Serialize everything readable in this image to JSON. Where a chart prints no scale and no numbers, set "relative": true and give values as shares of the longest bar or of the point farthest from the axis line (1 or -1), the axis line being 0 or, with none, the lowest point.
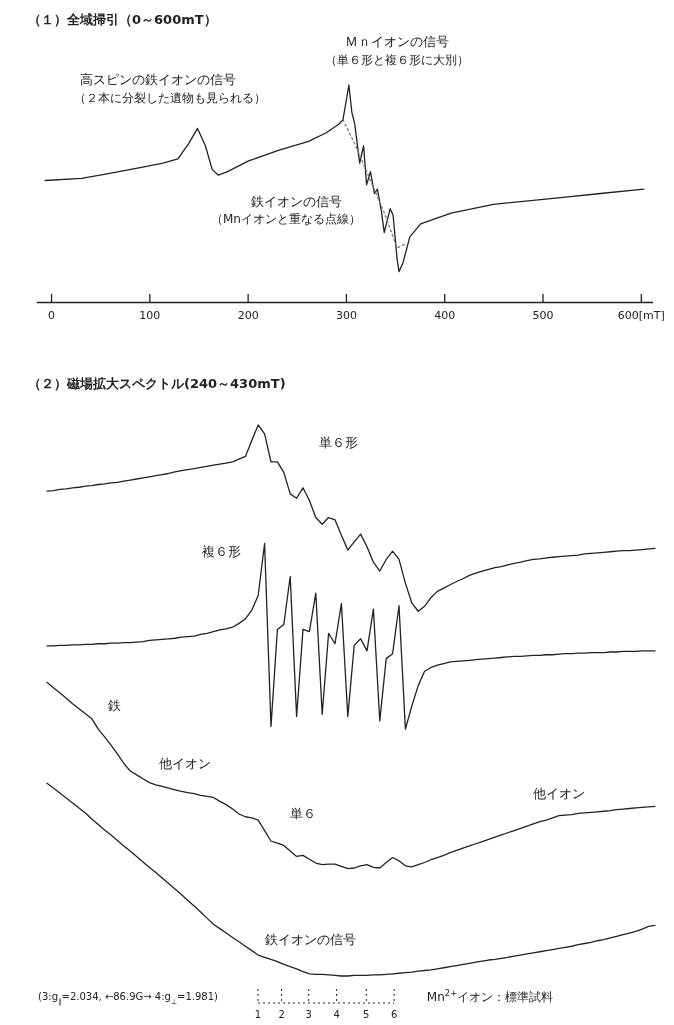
{
  "chart_data": [
    {
      "type": "line",
      "title": "（１）全域掃引（0～600mT）",
      "relative": true,
      "xlim": [
        -15,
        612
      ],
      "xticks": [
        0,
        100,
        200,
        300,
        400,
        500,
        {
          "value": 600,
          "label": "600[mT]"
        }
      ],
      "annotations": [
        "高スピンの鉄イオンの信号",
        "（２本に分裂した遺物も見られる）",
        "Ｍｎイオンの信号",
        "（単６形と複６形に大別）",
        "鉄イオンの信号",
        "（Mnイオンと重なる点線）"
      ],
      "series": [
        {
          "color": "#222222",
          "x": [
            -6,
            31,
            57,
            92,
            114,
            129,
            140,
            149,
            157,
            164,
            170,
            179,
            201,
            232,
            262,
            280,
            293,
            297,
            303,
            306,
            309,
            314,
            318,
            321,
            325,
            329,
            332,
            336,
            339,
            345,
            348,
            352,
            354,
            358,
            365,
            376,
            407,
            450,
            516,
            559,
            603
          ],
          "values": [
            0.56,
            0.57,
            0.59,
            0.62,
            0.64,
            0.66,
            0.73,
            0.8,
            0.72,
            0.61,
            0.585,
            0.6,
            0.65,
            0.7,
            0.74,
            0.78,
            0.82,
            0.84,
            1.0,
            0.875,
            0.82,
            0.64,
            0.72,
            0.54,
            0.6,
            0.5,
            0.52,
            0.42,
            0.32,
            0.43,
            0.4,
            0.2,
            0.14,
            0.18,
            0.3,
            0.36,
            0.41,
            0.45,
            0.48,
            0.5,
            0.52
          ]
        },
        {
          "color": "#777777",
          "line_style": "dotted",
          "x": [
            297,
            310,
            325,
            340,
            352,
            362
          ],
          "values": [
            0.84,
            0.72,
            0.56,
            0.4,
            0.25,
            0.27
          ]
        }
      ]
    },
    {
      "type": "line",
      "title": "（２）磁場拡大スペクトル(240～430mT)",
      "relative": true,
      "categories": [
        null,
        null,
        null,
        null,
        null,
        null,
        null,
        null,
        null,
        null,
        null,
        null,
        null,
        null,
        null,
        null,
        null,
        null,
        null,
        null,
        null,
        null,
        null,
        null,
        null,
        null,
        null,
        null,
        null,
        null,
        null,
        null,
        null,
        null,
        null,
        null,
        null,
        null,
        null,
        null,
        null,
        null,
        null,
        null,
        null,
        null,
        null,
        null,
        null,
        null,
        null,
        null,
        null,
        null,
        null,
        null,
        null,
        null,
        null,
        null,
        null,
        null,
        null,
        null,
        null,
        null,
        null,
        null,
        null,
        null,
        null,
        null,
        null,
        null,
        null,
        null,
        null,
        null,
        null,
        null,
        null,
        null,
        null,
        null,
        null,
        null,
        null,
        null,
        null,
        null,
        null,
        null,
        null,
        null,
        null,
        null
      ],
      "annotations": [
        "単６形",
        "複６形",
        "鉄",
        "他イオン",
        "単６",
        "他イオン",
        "鉄イオンの信号",
        "(3:g$_{∥}$=2.034, ←86.9G→ 4:g$_{⊥}$=1.981)",
        "Mn$^{2+}$イオン：標準試料",
        "1",
        "2",
        "3",
        "4",
        "5",
        "6"
      ],
      "series": [
        {
          "color": "#222222",
          "values": [
            0.88,
            0.881,
            0.883,
            0.884,
            0.886,
            0.887,
            0.889,
            0.89,
            0.892,
            0.893,
            0.895,
            0.896,
            0.898,
            0.9,
            0.902,
            0.904,
            0.906,
            0.908,
            0.91,
            0.912,
            0.915,
            0.917,
            0.919,
            0.921,
            0.923,
            0.925,
            0.927,
            0.929,
            0.931,
            0.933,
            0.938,
            0.943,
            0.972,
            1.0,
            0.984,
            0.933,
            0.933,
            0.914,
            0.875,
            0.867,
            0.886,
            0.863,
            0.832,
            0.82,
            0.832,
            0.828,
            0.8,
            0.773,
            0.788,
            0.802,
            0.779,
            0.751,
            0.735,
            0.756,
            0.771,
            0.756,
            0.713,
            0.677,
            0.662,
            0.671,
            0.687,
            0.698,
            0.704,
            0.71,
            0.716,
            0.721,
            0.727,
            0.731,
            0.735,
            0.738,
            0.741,
            0.743,
            0.746,
            0.749,
            0.751,
            0.754,
            0.756,
            0.757,
            0.759,
            0.76,
            0.761,
            0.762,
            0.763,
            0.764,
            0.766,
            0.767,
            0.768,
            0.769,
            0.77,
            0.771,
            0.772,
            0.772,
            0.773,
            0.774,
            0.775,
            0.776
          ]
        },
        {
          "color": "#222222",
          "values": [
            0.599,
            0.599,
            0.6,
            0.6,
            0.601,
            0.601,
            0.602,
            0.602,
            0.603,
            0.603,
            0.604,
            0.604,
            0.605,
            0.605,
            0.606,
            0.607,
            0.609,
            0.61,
            0.611,
            0.612,
            0.613,
            0.615,
            0.616,
            0.617,
            0.62,
            0.622,
            0.625,
            0.628,
            0.63,
            0.633,
            0.64,
            0.648,
            0.664,
            0.691,
            0.785,
            0.453,
            0.629,
            0.638,
            0.725,
            0.471,
            0.629,
            0.625,
            0.695,
            0.475,
            0.622,
            0.603,
            0.676,
            0.471,
            0.6,
            0.612,
            0.59,
            0.666,
            0.463,
            0.576,
            0.585,
            0.672,
            0.448,
            0.49,
            0.527,
            0.553,
            0.56,
            0.564,
            0.567,
            0.57,
            0.571,
            0.572,
            0.573,
            0.574,
            0.575,
            0.576,
            0.577,
            0.578,
            0.579,
            0.58,
            0.58,
            0.581,
            0.582,
            0.582,
            0.583,
            0.583,
            0.584,
            0.585,
            0.585,
            0.586,
            0.586,
            0.587,
            0.587,
            0.587,
            0.588,
            0.588,
            0.589,
            0.589,
            0.589,
            0.59,
            0.59,
            0.59
          ]
        },
        {
          "color": "#222222",
          "values": [
            0.533,
            0.523,
            0.514,
            0.504,
            0.494,
            0.485,
            0.476,
            0.467,
            0.448,
            0.434,
            0.419,
            0.403,
            0.386,
            0.372,
            0.365,
            0.358,
            0.351,
            0.347,
            0.344,
            0.341,
            0.338,
            0.335,
            0.333,
            0.331,
            0.328,
            0.326,
            0.324,
            0.317,
            0.311,
            0.303,
            0.294,
            0.289,
            0.287,
            0.283,
            0.264,
            0.245,
            0.241,
            0.237,
            0.227,
            0.217,
            0.219,
            0.212,
            0.205,
            0.202,
            0.203,
            0.203,
            0.199,
            0.195,
            0.196,
            0.2,
            0.202,
            0.197,
            0.196,
            0.206,
            0.215,
            0.209,
            0.2,
            0.198,
            0.202,
            0.206,
            0.211,
            0.215,
            0.219,
            0.224,
            0.228,
            0.232,
            0.236,
            0.24,
            0.244,
            0.248,
            0.252,
            0.256,
            0.26,
            0.264,
            0.268,
            0.272,
            0.276,
            0.28,
            0.283,
            0.287,
            0.291,
            0.292,
            0.293,
            0.295,
            0.296,
            0.297,
            0.298,
            0.299,
            0.3,
            0.302,
            0.303,
            0.304,
            0.305,
            0.306,
            0.307,
            0.308
          ]
        },
        {
          "color": "#222222",
          "values": [
            0.35,
            0.341,
            0.332,
            0.323,
            0.314,
            0.305,
            0.296,
            0.285,
            0.275,
            0.265,
            0.256,
            0.246,
            0.236,
            0.227,
            0.217,
            0.207,
            0.197,
            0.188,
            0.178,
            0.168,
            0.158,
            0.148,
            0.137,
            0.127,
            0.116,
            0.105,
            0.094,
            0.086,
            0.078,
            0.07,
            0.062,
            0.054,
            0.046,
            0.038,
            0.034,
            0.03,
            0.026,
            0.021,
            0.017,
            0.013,
            0.008,
            0.004,
            0.003,
            0.003,
            0.002,
            0.001,
            0.0,
            0.0,
            0.001,
            0.001,
            0.001,
            0.002,
            0.002,
            0.003,
            0.004,
            0.005,
            0.006,
            0.007,
            0.009,
            0.01,
            0.011,
            0.013,
            0.015,
            0.017,
            0.019,
            0.021,
            0.023,
            0.025,
            0.027,
            0.029,
            0.03,
            0.032,
            0.034,
            0.036,
            0.038,
            0.04,
            0.042,
            0.044,
            0.046,
            0.048,
            0.05,
            0.052,
            0.054,
            0.057,
            0.059,
            0.061,
            0.064,
            0.066,
            0.069,
            0.072,
            0.075,
            0.078,
            0.081,
            0.085,
            0.09,
            0.092
          ]
        }
      ]
    }
  ]
}
